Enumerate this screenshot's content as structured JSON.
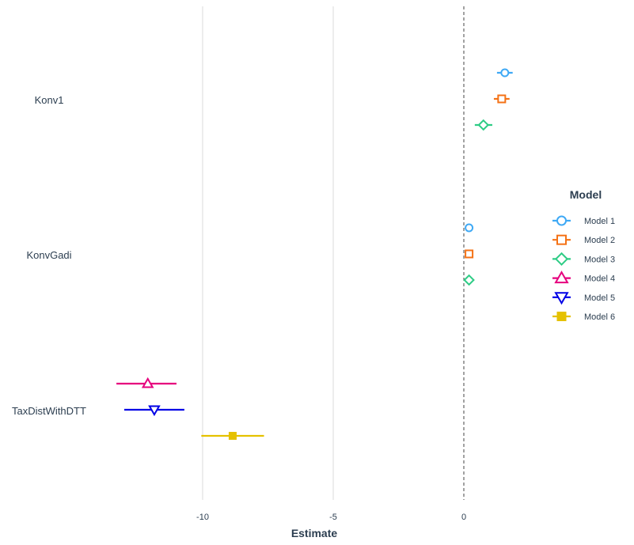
{
  "chart_data": {
    "type": "dot-whisker",
    "xlabel": "Estimate",
    "x_ticks": [
      -10,
      -5,
      0
    ],
    "xlim": [
      -17.7,
      0.0
    ],
    "zero_line": {
      "x": 0,
      "style": "dashed"
    },
    "categories": [
      "Konv1",
      "KonvGadi",
      "TaxDistWithDTT"
    ],
    "legend_title": "Model",
    "legend_position": "right",
    "series": [
      {
        "name": "Model 1",
        "color": "#3fa9f5",
        "marker": "circle-open",
        "points": [
          {
            "category": "Konv1",
            "estimate": 1.57,
            "lower": 1.27,
            "upper": 1.87
          },
          {
            "category": "KonvGadi",
            "estimate": 0.2,
            "lower": 0.2,
            "upper": 0.2
          }
        ]
      },
      {
        "name": "Model 2",
        "color": "#f47216",
        "marker": "square-open",
        "points": [
          {
            "category": "Konv1",
            "estimate": 1.45,
            "lower": 1.15,
            "upper": 1.75
          },
          {
            "category": "KonvGadi",
            "estimate": 0.2,
            "lower": 0.2,
            "upper": 0.2
          }
        ]
      },
      {
        "name": "Model 3",
        "color": "#2ecc85",
        "marker": "diamond-open",
        "points": [
          {
            "category": "Konv1",
            "estimate": 0.75,
            "lower": 0.42,
            "upper": 1.09
          },
          {
            "category": "KonvGadi",
            "estimate": 0.2,
            "lower": 0.2,
            "upper": 0.2
          }
        ]
      },
      {
        "name": "Model 4",
        "color": "#e6007e",
        "marker": "triangle-up-open",
        "points": [
          {
            "category": "TaxDistWithDTT",
            "estimate": -12.1,
            "lower": -13.3,
            "upper": -11.0
          }
        ]
      },
      {
        "name": "Model 5",
        "color": "#0000e6",
        "marker": "triangle-down-open",
        "points": [
          {
            "category": "TaxDistWithDTT",
            "estimate": -11.85,
            "lower": -13.0,
            "upper": -10.7
          }
        ]
      },
      {
        "name": "Model 6",
        "color": "#e5c100",
        "marker": "square-filled",
        "points": [
          {
            "category": "TaxDistWithDTT",
            "estimate": -8.85,
            "lower": -10.05,
            "upper": -7.65
          }
        ]
      }
    ]
  }
}
